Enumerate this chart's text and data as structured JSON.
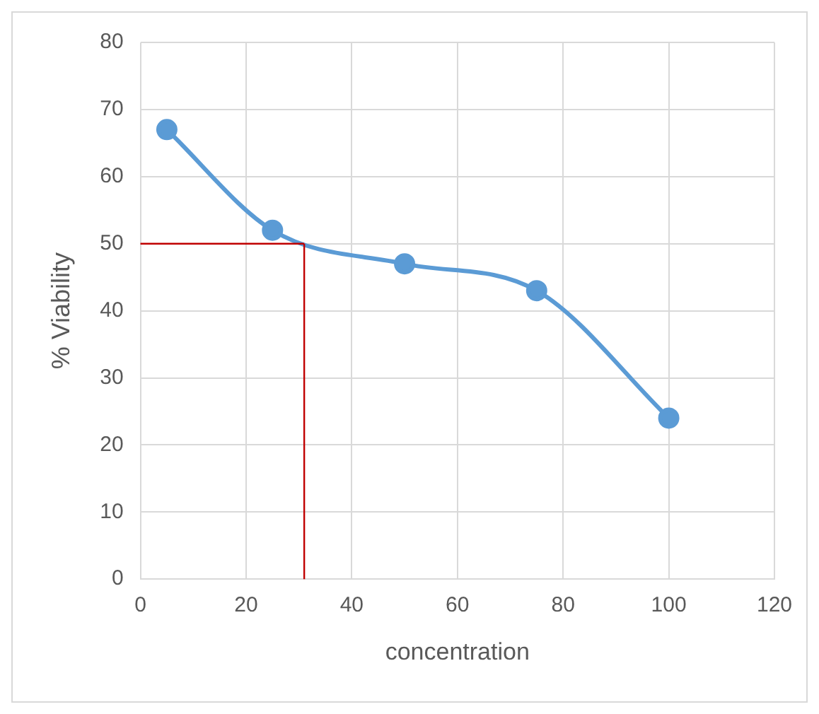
{
  "chart_data": {
    "type": "line",
    "xlabel": "concentration",
    "ylabel": "% Viability",
    "x": [
      5,
      25,
      50,
      75,
      100
    ],
    "series": [
      {
        "color": "#5b9bd5",
        "values": [
          67,
          52,
          47,
          43,
          24
        ]
      }
    ],
    "xlim": [
      0,
      120
    ],
    "xticks": [
      0,
      20,
      40,
      60,
      80,
      100,
      120
    ],
    "ylim": [
      0,
      80
    ],
    "yticks": [
      0,
      10,
      20,
      30,
      40,
      50,
      60,
      70,
      80
    ],
    "grid": true,
    "legend": false,
    "marker": "circle",
    "line_style": "solid",
    "ref_lines": [
      {
        "axis": "y",
        "value": 50,
        "color": "#c00000"
      },
      {
        "axis": "x",
        "value": 31,
        "color": "#c00000"
      }
    ]
  }
}
